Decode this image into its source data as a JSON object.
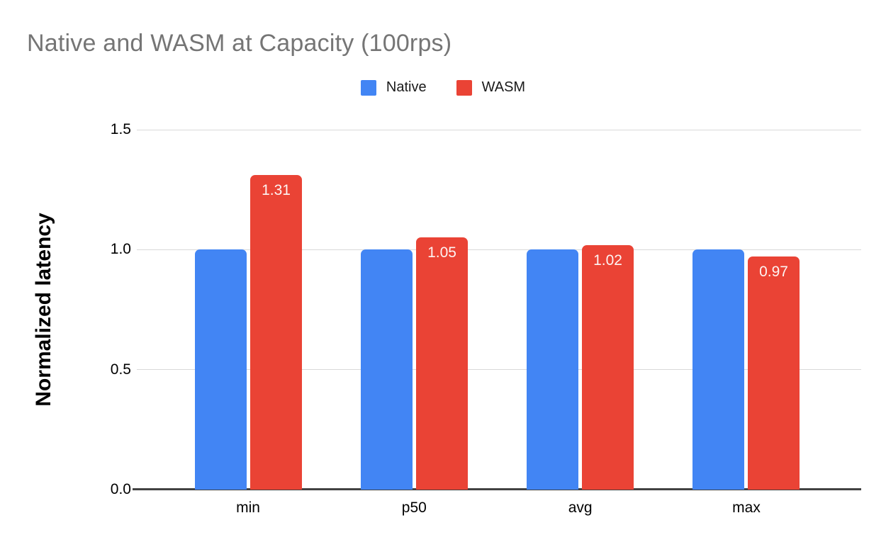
{
  "title": "Native and WASM at Capacity (100rps)",
  "legend": {
    "items": [
      {
        "label": "Native",
        "color": "#4285F4"
      },
      {
        "label": "WASM",
        "color": "#EA4335"
      }
    ],
    "position": "top-center"
  },
  "chart_data": {
    "type": "bar",
    "title": "Native and WASM at Capacity (100rps)",
    "categories": [
      "min",
      "p50",
      "avg",
      "max"
    ],
    "series": [
      {
        "name": "Native",
        "color": "#4285F4",
        "values": [
          1.0,
          1.0,
          1.0,
          1.0
        ],
        "show_value_labels": false
      },
      {
        "name": "WASM",
        "color": "#EA4335",
        "values": [
          1.31,
          1.05,
          1.02,
          0.97
        ],
        "show_value_labels": true
      }
    ],
    "value_label_color": "#fdf4f3",
    "xlabel": "",
    "ylabel": "Normalized latency",
    "ylim": [
      0,
      1.5
    ],
    "yticks": [
      0.0,
      0.5,
      1.0,
      1.5
    ],
    "ytick_labels": [
      "0.0",
      "0.5",
      "1.0",
      "1.5"
    ],
    "grid": true,
    "gridline_color": "#d9d9d9",
    "baseline_color": "#424242",
    "title_color": "#757575",
    "legend_position": "top"
  }
}
